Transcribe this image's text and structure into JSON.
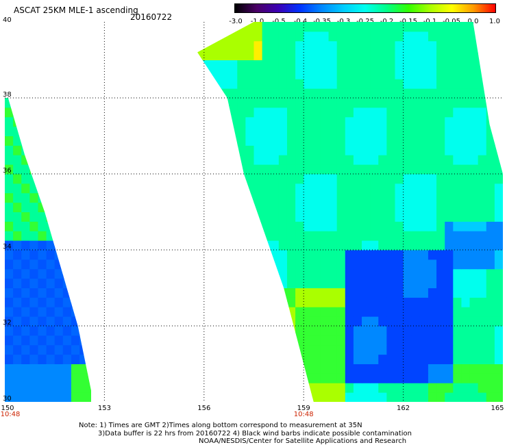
{
  "header": {
    "title": "ASCAT 25KM MLE-1 ascending",
    "date": "20160722"
  },
  "colorbar": {
    "labels": [
      "-3.0",
      "-1.0",
      "-0.5",
      "-0.4",
      "-0.35",
      "-0.3",
      "-0.25",
      "-0.2",
      "-0.15",
      "-0.1",
      "-0.05",
      "0.0",
      "1.0"
    ],
    "colors": [
      "#000000",
      "#4a0066",
      "#3b00b5",
      "#0033ff",
      "#0088ff",
      "#00ccff",
      "#00ffee",
      "#00ff88",
      "#33ff00",
      "#aaff00",
      "#ffff00",
      "#ff9900",
      "#ff0000"
    ]
  },
  "map": {
    "lat_labels": [
      "40",
      "38",
      "36",
      "34",
      "32",
      "30"
    ],
    "lon_labels": [
      "150",
      "153",
      "156",
      "159",
      "162",
      "165"
    ],
    "pass_times": [
      "10:48",
      "10:48"
    ],
    "lat_range": [
      30,
      40
    ],
    "lon_range": [
      150,
      165
    ]
  },
  "footer": {
    "note_line1": "Note: 1) Times are GMT 2)Times along bottom correspond to measurement at 35N",
    "note_line2": "3)Data buffer is 22 hrs from 20160722 4) Black wind barbs indicate possible contamination",
    "credit": "NOAA/NESDIS/Center for Satellite Applications and Research"
  }
}
